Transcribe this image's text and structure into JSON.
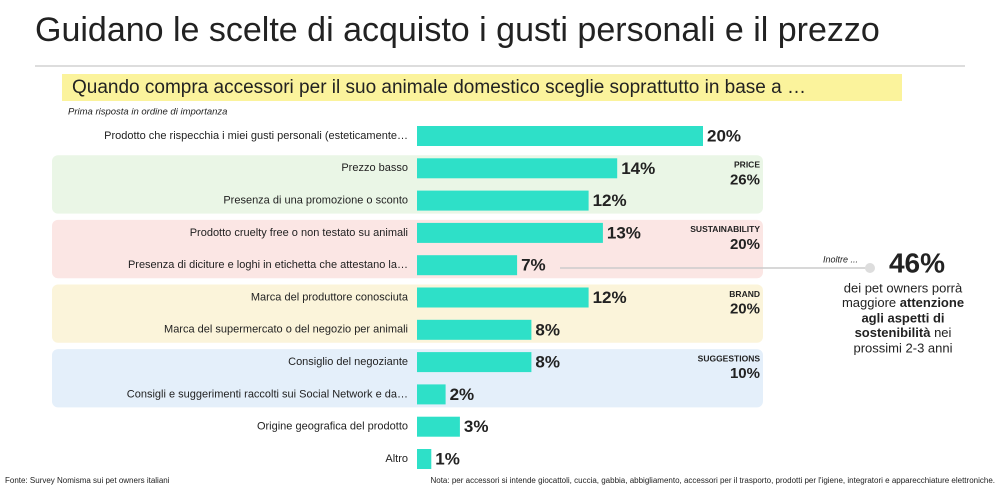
{
  "chart_data": {
    "type": "bar",
    "orientation": "horizontal",
    "title": "Guidano le scelte di acquisto i gusti personali e il prezzo",
    "subtitle": "Quando compra accessori per il suo animale domestico sceglie soprattutto in base a …",
    "note": "Prima risposta in ordine di importanza",
    "categories": [
      "Prodotto che rispecchia i miei gusti personali (esteticamente…",
      "Prezzo basso",
      "Presenza di una promozione o sconto",
      "Prodotto cruelty free o non testato su animali",
      "Presenza di diciture e loghi in etichetta che attestano la…",
      "Marca del produttore conosciuta",
      "Marca del supermercato o del negozio per animali",
      "Consiglio del negoziante",
      "Consigli e suggerimenti raccolti sui Social Network e da…",
      "Origine geografica del prodotto",
      "Altro"
    ],
    "values": [
      20,
      14,
      12,
      13,
      7,
      12,
      8,
      8,
      2,
      3,
      1
    ],
    "value_labels": [
      "20%",
      "14%",
      "12%",
      "13%",
      "7%",
      "12%",
      "8%",
      "8%",
      "2%",
      "3%",
      "1%"
    ],
    "color": "#2ee0c8",
    "groups": [
      {
        "name": "PRICE",
        "value": 26,
        "value_label": "26%",
        "color": "#3c9a3c",
        "background": "#eaf6e6"
      },
      {
        "name": "SUSTAINABILITY",
        "value": 20,
        "value_label": "20%",
        "color": "#e25b4d",
        "background": "#fbe6e4"
      },
      {
        "name": "BRAND",
        "value": 20,
        "value_label": "20%",
        "color": "#9c8a18",
        "background": "#fbf4da"
      },
      {
        "name": "SUGGESTIONS",
        "value": 10,
        "value_label": "10%",
        "color": "#2383c0",
        "background": "#e4effa"
      }
    ],
    "callout": {
      "intro": "Inoltre ...",
      "highlight": "46%",
      "parts": [
        "dei pet owners porrà",
        "maggiore",
        "attenzione",
        "agli aspetti di",
        "sostenibilità",
        "nei",
        "prossimi 2-3 anni"
      ]
    },
    "source": "Fonte: Survey Nomisma sui pet owners italiani",
    "footnote": "Nota: per accessori si intende giocattoli, cuccia, gabbia, abbigliamento, accessori per il trasporto, prodotti per l'igiene, integratori e apparecchiature elettroniche."
  }
}
